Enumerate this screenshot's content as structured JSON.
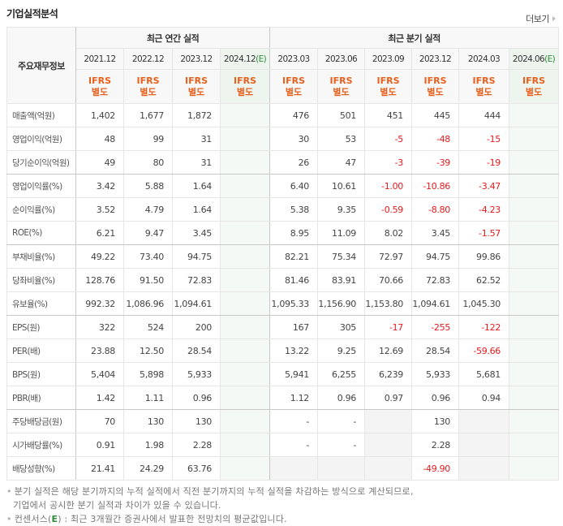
{
  "header": {
    "title": "기업실적분석",
    "more_label": "더보기"
  },
  "table": {
    "label_header": "주요재무정보",
    "groups": {
      "annual": "최근 연간 실적",
      "quarterly": "최근 분기 실적"
    },
    "periods": [
      {
        "date": "2021.12",
        "estimate": "",
        "ifrs1": "IFRS",
        "ifrs2": "별도"
      },
      {
        "date": "2022.12",
        "estimate": "",
        "ifrs1": "IFRS",
        "ifrs2": "별도"
      },
      {
        "date": "2023.12",
        "estimate": "",
        "ifrs1": "IFRS",
        "ifrs2": "별도"
      },
      {
        "date": "2024.12",
        "estimate": "(E)",
        "ifrs1": "IFRS",
        "ifrs2": "별도"
      },
      {
        "date": "2023.03",
        "estimate": "",
        "ifrs1": "IFRS",
        "ifrs2": "별도"
      },
      {
        "date": "2023.06",
        "estimate": "",
        "ifrs1": "IFRS",
        "ifrs2": "별도"
      },
      {
        "date": "2023.09",
        "estimate": "",
        "ifrs1": "IFRS",
        "ifrs2": "별도"
      },
      {
        "date": "2023.12",
        "estimate": "",
        "ifrs1": "IFRS",
        "ifrs2": "별도"
      },
      {
        "date": "2024.03",
        "estimate": "",
        "ifrs1": "IFRS",
        "ifrs2": "별도"
      },
      {
        "date": "2024.06",
        "estimate": "(E)",
        "ifrs1": "IFRS",
        "ifrs2": "별도"
      }
    ],
    "rows": [
      {
        "label": "매출액(억원)",
        "values": [
          "1,402",
          "1,677",
          "1,872",
          "",
          "476",
          "501",
          "451",
          "445",
          "444",
          ""
        ]
      },
      {
        "label": "영업이익(억원)",
        "values": [
          "48",
          "99",
          "31",
          "",
          "30",
          "53",
          "-5",
          "-48",
          "-15",
          ""
        ]
      },
      {
        "label": "당기순이익(억원)",
        "values": [
          "49",
          "80",
          "31",
          "",
          "26",
          "47",
          "-3",
          "-39",
          "-19",
          ""
        ]
      },
      {
        "label": "영업이익률(%)",
        "values": [
          "3.42",
          "5.88",
          "1.64",
          "",
          "6.40",
          "10.61",
          "-1.00",
          "-10.86",
          "-3.47",
          ""
        ]
      },
      {
        "label": "순이익률(%)",
        "values": [
          "3.52",
          "4.79",
          "1.64",
          "",
          "5.38",
          "9.35",
          "-0.59",
          "-8.80",
          "-4.23",
          ""
        ]
      },
      {
        "label": "ROE(%)",
        "values": [
          "6.21",
          "9.47",
          "3.45",
          "",
          "8.95",
          "11.09",
          "8.02",
          "3.45",
          "-1.57",
          ""
        ]
      },
      {
        "label": "부채비율(%)",
        "values": [
          "49.22",
          "73.40",
          "94.75",
          "",
          "82.21",
          "75.34",
          "72.97",
          "94.75",
          "99.86",
          ""
        ]
      },
      {
        "label": "당좌비율(%)",
        "values": [
          "128.76",
          "91.50",
          "72.83",
          "",
          "81.46",
          "83.91",
          "70.66",
          "72.83",
          "62.52",
          ""
        ]
      },
      {
        "label": "유보율(%)",
        "values": [
          "992.32",
          "1,086.96",
          "1,094.61",
          "",
          "1,095.33",
          "1,156.90",
          "1,153.80",
          "1,094.61",
          "1,045.30",
          ""
        ]
      },
      {
        "label": "EPS(원)",
        "values": [
          "322",
          "524",
          "200",
          "",
          "167",
          "305",
          "-17",
          "-255",
          "-122",
          ""
        ]
      },
      {
        "label": "PER(배)",
        "values": [
          "23.88",
          "12.50",
          "28.54",
          "",
          "13.22",
          "9.25",
          "12.69",
          "28.54",
          "-59.66",
          ""
        ]
      },
      {
        "label": "BPS(원)",
        "values": [
          "5,404",
          "5,898",
          "5,933",
          "",
          "5,941",
          "6,255",
          "6,239",
          "5,933",
          "5,681",
          ""
        ]
      },
      {
        "label": "PBR(배)",
        "values": [
          "1.42",
          "1.11",
          "0.96",
          "",
          "1.12",
          "0.96",
          "0.97",
          "0.96",
          "0.94",
          ""
        ]
      },
      {
        "label": "주당배당금(원)",
        "values": [
          "70",
          "130",
          "130",
          "",
          "-",
          "-",
          "",
          "130",
          "",
          ""
        ]
      },
      {
        "label": "시가배당률(%)",
        "values": [
          "0.91",
          "1.98",
          "2.28",
          "",
          "-",
          "-",
          "",
          "2.28",
          "",
          ""
        ]
      },
      {
        "label": "배당성향(%)",
        "values": [
          "21.41",
          "24.29",
          "63.76",
          "",
          "",
          "",
          "",
          "-49.90",
          "",
          ""
        ]
      }
    ]
  },
  "notes": {
    "line1": "분기 실적은 해당 분기까지의 누적 실적에서 직전 분기까지의 누적 실적을 차감하는 방식으로 계산되므로,",
    "line2": "기업에서 공시한 분기 실적과 차이가 있을 수 있습니다.",
    "line3_prefix": "컨센서스(",
    "line3_e": "E",
    "line3_suffix": ") : 최근 3개월간 증권사에서 발표한 전망치의 평균값입니다."
  },
  "colors": {
    "negative": "#e8191c",
    "ifrs": "#e8601c",
    "estimate_mark": "#2e8b3a",
    "estimate_bg": "#f4f9f5",
    "na_bg": "#f4f4f4"
  }
}
